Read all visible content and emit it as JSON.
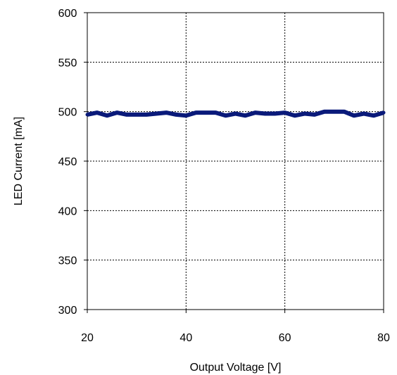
{
  "chart_data": {
    "type": "line",
    "xlabel": "Output Voltage [V]",
    "ylabel": "LED Current [mA]",
    "xlim": [
      20,
      80
    ],
    "ylim": [
      300,
      600
    ],
    "x_ticks": [
      20,
      40,
      60,
      80
    ],
    "y_ticks": [
      300,
      350,
      400,
      450,
      500,
      550,
      600
    ],
    "x_tick_labels": [
      "20",
      "40",
      "60",
      "80"
    ],
    "y_tick_labels": [
      "300",
      "350",
      "400",
      "450",
      "500",
      "550",
      "600"
    ],
    "grid": true,
    "grid_style": "dashed",
    "legend": "none",
    "series": [
      {
        "color": "#0a1a7a",
        "x": [
          20,
          22,
          24,
          26,
          28,
          30,
          32,
          34,
          36,
          38,
          40,
          42,
          44,
          46,
          48,
          50,
          52,
          54,
          56,
          58,
          60,
          62,
          64,
          66,
          68,
          70,
          72,
          74,
          76,
          78,
          80
        ],
        "y": [
          497,
          499,
          496,
          499,
          497,
          497,
          497,
          498,
          499,
          497,
          496,
          499,
          499,
          499,
          496,
          498,
          496,
          499,
          498,
          498,
          499,
          496,
          498,
          497,
          500,
          500,
          500,
          496,
          498,
          496,
          499
        ]
      }
    ]
  }
}
